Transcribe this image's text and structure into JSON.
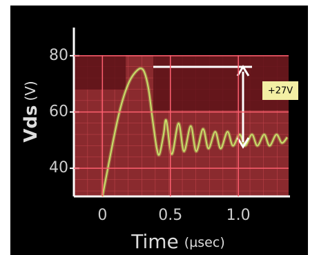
{
  "chart_data": {
    "type": "line",
    "y_label": "Vds",
    "y_label_unit": "(V)",
    "x_label": "Time",
    "x_label_unit": "(µsec)",
    "annotation": "+27V",
    "xlim": [
      -0.21,
      1.37
    ],
    "ylim": [
      30,
      90
    ],
    "xticks": [
      0,
      0.5,
      {
        "value": 1,
        "label": "1.0"
      }
    ],
    "yticks": [
      40,
      60,
      80
    ],
    "series": [
      {
        "color": "#c8e06a",
        "x": [
          0,
          0.04,
          0.08,
          0.12,
          0.16,
          0.2,
          0.24,
          0.28,
          0.31,
          0.34,
          0.37,
          0.4,
          0.42,
          0.45,
          0.47,
          0.51,
          0.56,
          0.6,
          0.65,
          0.69,
          0.74,
          0.78,
          0.83,
          0.87,
          0.92,
          0.96,
          1.01,
          1.05,
          1.1,
          1.14,
          1.19,
          1.23,
          1.28,
          1.32,
          1.36
        ],
        "values": [
          30,
          40,
          50,
          59,
          66,
          71,
          74,
          75.5,
          74,
          68,
          57,
          47,
          45,
          52,
          57,
          45,
          56,
          46,
          55,
          46,
          54,
          47,
          53,
          47,
          53,
          48,
          52,
          48,
          52,
          48,
          52,
          48,
          52,
          49,
          51
        ]
      }
    ]
  }
}
